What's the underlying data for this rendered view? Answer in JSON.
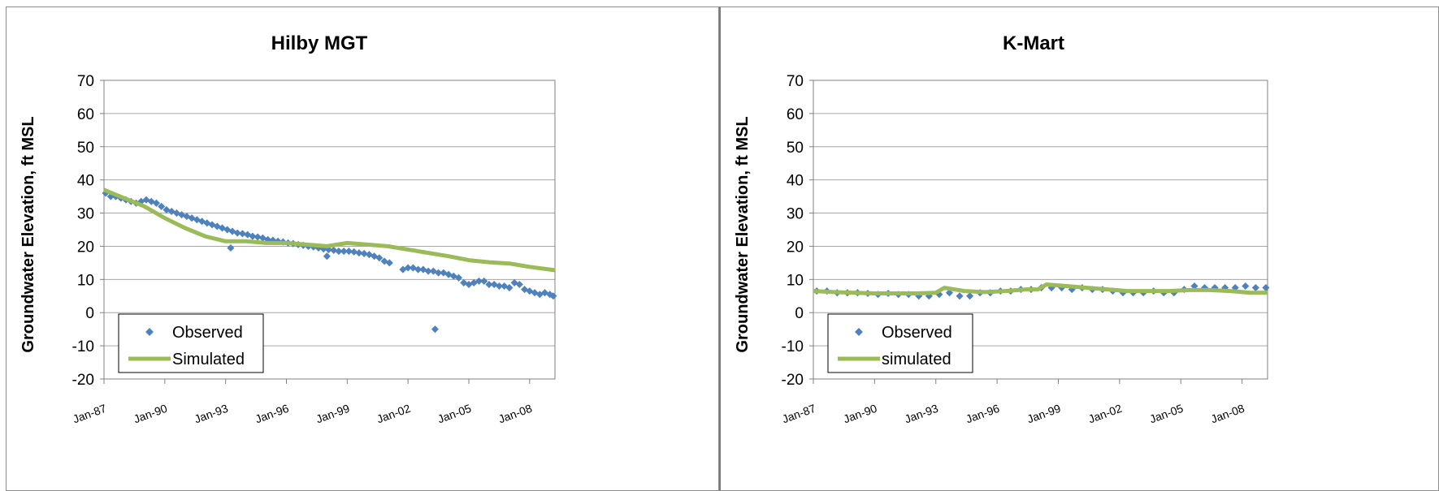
{
  "colors": {
    "observed": "#4f81bd",
    "simulated": "#9bbb59",
    "grid": "#a6a6a6"
  },
  "chart_data": [
    {
      "type": "scatter",
      "title": "Hilby MGT",
      "xlabel": "",
      "ylabel": "Groundwater Elevation, ft MSL",
      "ylim": [
        -20,
        70
      ],
      "yticks": [
        "-20",
        "-10",
        "0",
        "10",
        "20",
        "30",
        "40",
        "50",
        "60",
        "70"
      ],
      "xlim": [
        "1987-01",
        "2009-04"
      ],
      "xticks": [
        "Jan-87",
        "Jan-90",
        "Jan-93",
        "Jan-96",
        "Jan-99",
        "Jan-02",
        "Jan-05",
        "Jan-08"
      ],
      "grid": true,
      "legend_position": "bottom-left",
      "series": [
        {
          "name": "Observed",
          "kind": "points",
          "x": [
            "1987-02",
            "1987-05",
            "1987-08",
            "1987-11",
            "1988-02",
            "1988-05",
            "1988-08",
            "1988-11",
            "1989-02",
            "1989-05",
            "1989-08",
            "1989-11",
            "1990-02",
            "1990-05",
            "1990-08",
            "1990-11",
            "1991-02",
            "1991-05",
            "1991-08",
            "1991-11",
            "1992-02",
            "1992-05",
            "1992-08",
            "1992-11",
            "1993-02",
            "1993-05",
            "1993-08",
            "1993-11",
            "1994-02",
            "1994-05",
            "1994-08",
            "1994-11",
            "1995-02",
            "1995-05",
            "1995-08",
            "1995-11",
            "1996-02",
            "1996-05",
            "1996-08",
            "1996-11",
            "1997-02",
            "1997-05",
            "1997-08",
            "1997-11",
            "1998-02",
            "1998-05",
            "1998-08",
            "1998-11",
            "1999-02",
            "1999-05",
            "1999-08",
            "1999-11",
            "2000-02",
            "2000-05",
            "2000-08",
            "2000-11",
            "2001-02",
            "2001-10",
            "2002-01",
            "2002-04",
            "2002-07",
            "2002-10",
            "2003-01",
            "2003-04",
            "2003-07",
            "2003-10",
            "2004-01",
            "2004-04",
            "2004-07",
            "2004-10",
            "2005-01",
            "2005-04",
            "2005-07",
            "2005-10",
            "2006-01",
            "2006-04",
            "2006-07",
            "2006-10",
            "2007-01",
            "2007-04",
            "2007-07",
            "2007-10",
            "2008-01",
            "2008-04",
            "2008-07",
            "2008-10",
            "2009-01",
            "2009-03",
            "1993-04",
            "1998-01",
            "2003-05"
          ],
          "y": [
            36,
            35,
            35,
            34.5,
            34,
            33.5,
            33,
            33.5,
            34,
            33.5,
            33,
            32,
            31,
            30.5,
            30,
            29.5,
            29,
            28.5,
            28,
            27.5,
            27,
            26.5,
            26,
            25.5,
            25,
            24.5,
            24,
            23.8,
            23.5,
            23,
            22.8,
            22.5,
            22,
            21.8,
            21.5,
            21.3,
            21,
            20.8,
            20.5,
            20.3,
            20,
            19.8,
            19.5,
            19.2,
            19,
            18.8,
            18.5,
            18.5,
            18.5,
            18.3,
            18,
            17.8,
            17.5,
            17,
            16.5,
            15.5,
            15,
            13,
            13.5,
            13.5,
            13,
            13,
            12.5,
            12.5,
            12,
            12,
            11.5,
            11,
            10.5,
            9,
            8.5,
            9,
            9.5,
            9.5,
            8.5,
            8.5,
            8,
            8,
            7.5,
            9,
            8.5,
            7,
            6.5,
            6,
            5.5,
            6,
            5.5,
            5,
            19.5,
            17,
            -5
          ]
        },
        {
          "name": "Simulated",
          "kind": "line",
          "x": [
            "1987-01",
            "1988-01",
            "1989-01",
            "1990-01",
            "1991-01",
            "1992-01",
            "1993-01",
            "1994-01",
            "1995-01",
            "1996-01",
            "1997-01",
            "1998-01",
            "1999-01",
            "2000-01",
            "2001-01",
            "2002-01",
            "2003-01",
            "2004-01",
            "2005-01",
            "2006-01",
            "2007-01",
            "2008-01",
            "2009-01",
            "2009-04"
          ],
          "y": [
            37,
            34.5,
            32,
            28.5,
            25.5,
            23,
            21.5,
            21.5,
            21,
            21,
            20.5,
            20,
            21,
            20.5,
            20,
            19,
            18,
            17,
            15.8,
            15.2,
            14.8,
            13.8,
            13,
            12.8
          ]
        }
      ]
    },
    {
      "type": "scatter",
      "title": "K-Mart",
      "xlabel": "",
      "ylabel": "Groundwater Elevation, ft MSL",
      "ylim": [
        -20,
        70
      ],
      "yticks": [
        "-20",
        "-10",
        "0",
        "10",
        "20",
        "30",
        "40",
        "50",
        "60",
        "70"
      ],
      "xlim": [
        "1987-01",
        "2009-04"
      ],
      "xticks": [
        "Jan-87",
        "Jan-90",
        "Jan-93",
        "Jan-96",
        "Jan-99",
        "Jan-02",
        "Jan-05",
        "Jan-08"
      ],
      "grid": true,
      "legend_position": "bottom-left",
      "series": [
        {
          "name": "Observed",
          "kind": "points",
          "x": [
            "1987-03",
            "1987-09",
            "1988-03",
            "1988-09",
            "1989-03",
            "1989-09",
            "1990-03",
            "1990-09",
            "1991-03",
            "1991-09",
            "1992-03",
            "1992-09",
            "1993-03",
            "1993-09",
            "1994-03",
            "1994-09",
            "1995-03",
            "1995-09",
            "1996-03",
            "1996-09",
            "1997-03",
            "1997-09",
            "1998-03",
            "1998-09",
            "1999-03",
            "1999-09",
            "2000-03",
            "2000-09",
            "2001-03",
            "2001-09",
            "2002-03",
            "2002-09",
            "2003-03",
            "2003-09",
            "2004-03",
            "2004-09",
            "2005-03",
            "2005-09",
            "2006-03",
            "2006-09",
            "2007-03",
            "2007-09",
            "2008-03",
            "2008-09",
            "2009-03"
          ],
          "y": [
            6.5,
            6.5,
            6,
            6,
            6,
            5.8,
            5.5,
            5.8,
            5.5,
            5.5,
            5,
            5,
            5.5,
            6,
            5,
            5,
            6,
            6,
            6.5,
            6.5,
            7,
            7,
            7.5,
            7.5,
            7.5,
            7,
            7.5,
            7,
            7,
            6.5,
            6,
            6,
            6,
            6.5,
            6,
            6,
            7,
            8,
            7.5,
            7.5,
            7.5,
            7.5,
            8,
            7.5,
            7.5
          ]
        },
        {
          "name": "simulated",
          "kind": "line",
          "x": [
            "1987-01",
            "1988-01",
            "1989-01",
            "1990-01",
            "1991-01",
            "1992-01",
            "1993-01",
            "1993-06",
            "1994-06",
            "1995-06",
            "1996-06",
            "1997-06",
            "1998-01",
            "1998-06",
            "1999-06",
            "2000-06",
            "2001-06",
            "2002-06",
            "2003-06",
            "2004-06",
            "2005-06",
            "2006-06",
            "2007-06",
            "2008-06",
            "2009-04"
          ],
          "y": [
            6.5,
            6.2,
            6,
            5.8,
            5.8,
            5.8,
            6,
            7.5,
            6.5,
            6.2,
            6.5,
            7,
            7,
            8.5,
            8,
            7.5,
            7,
            6.5,
            6.5,
            6.5,
            6.8,
            6.8,
            6.5,
            6,
            6
          ]
        }
      ]
    }
  ]
}
